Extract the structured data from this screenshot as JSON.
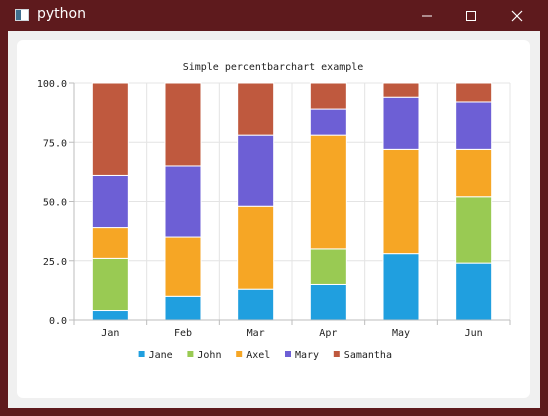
{
  "window": {
    "title": "python",
    "icon": "app-window-icon",
    "controls": [
      "minimize-icon",
      "maximize-icon",
      "close-icon"
    ],
    "frame_color": "#5e1a1d"
  },
  "chart_data": {
    "type": "bar",
    "stacked": "percent",
    "title": "Simple percentbarchart example",
    "categories": [
      "Jan",
      "Feb",
      "Mar",
      "Apr",
      "May",
      "Jun"
    ],
    "y_tick_labels": [
      "0.0",
      "25.0",
      "50.0",
      "75.0",
      "100.0"
    ],
    "ylim": [
      0,
      100
    ],
    "grid": true,
    "legend_position": "bottom",
    "series": [
      {
        "name": "Jane",
        "color": "#209fdf",
        "values": [
          4,
          10,
          13,
          15,
          28,
          24
        ]
      },
      {
        "name": "John",
        "color": "#99ca53",
        "values": [
          22,
          0,
          0,
          15,
          0,
          28
        ]
      },
      {
        "name": "Axel",
        "color": "#f6a625",
        "values": [
          13,
          25,
          35,
          48,
          44,
          20
        ]
      },
      {
        "name": "Mary",
        "color": "#6d5fd5",
        "values": [
          22,
          30,
          30,
          11,
          22,
          20
        ]
      },
      {
        "name": "Samantha",
        "color": "#bf593e",
        "values": [
          39,
          35,
          22,
          11,
          6,
          8
        ]
      }
    ]
  }
}
